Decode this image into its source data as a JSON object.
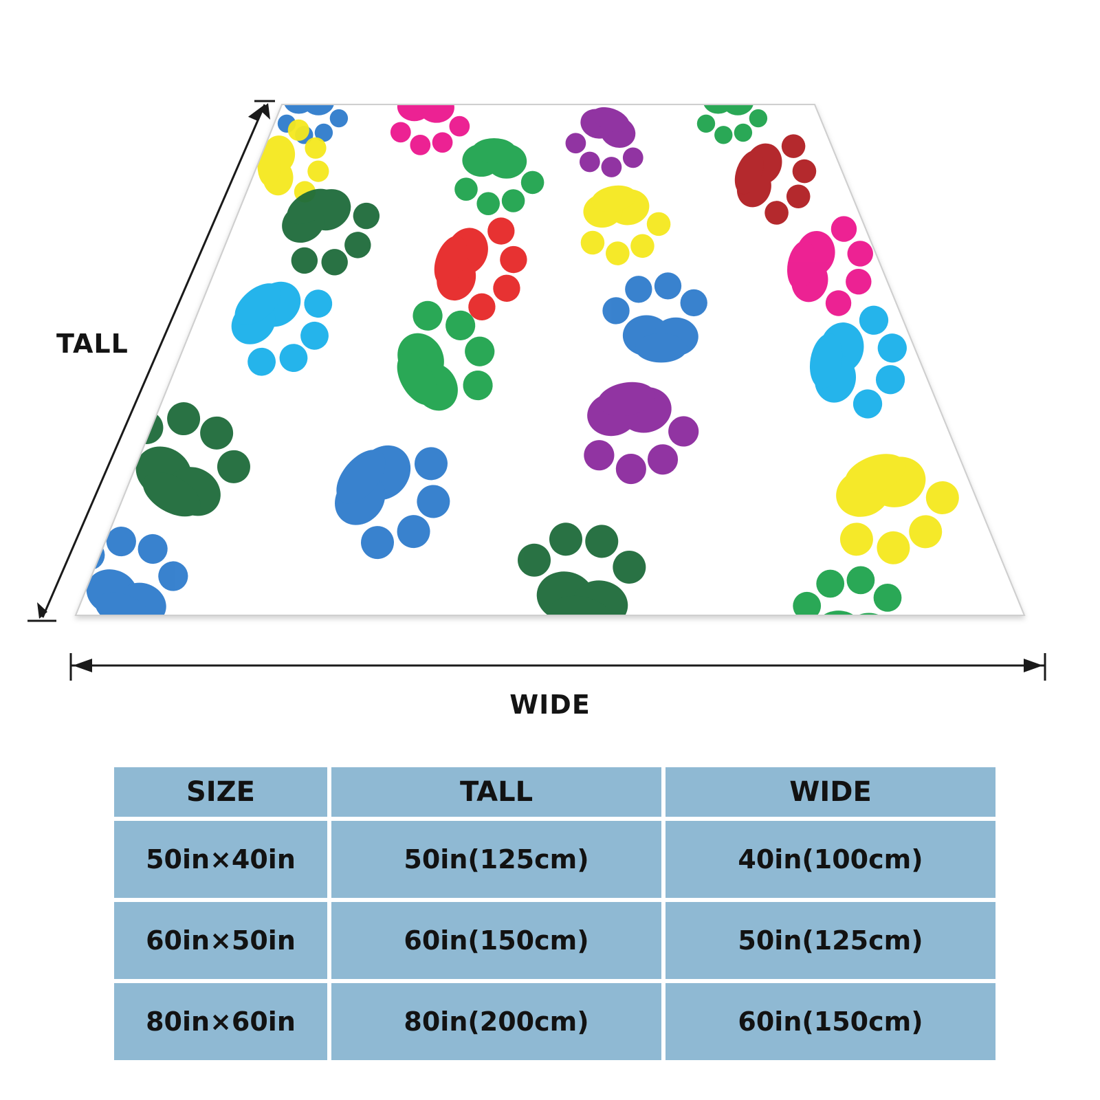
{
  "dimension_labels": {
    "tall": "TALL",
    "wide": "WIDE"
  },
  "size_table": {
    "headers": [
      "SIZE",
      "TALL",
      "WIDE"
    ],
    "rows": [
      [
        "50in×40in",
        "50in(125cm)",
        "40in(100cm)"
      ],
      [
        "60in×50in",
        "60in(150cm)",
        "50in(125cm)"
      ],
      [
        "80in×60in",
        "80in(200cm)",
        "60in(150cm)"
      ]
    ]
  },
  "colors": {
    "table_cell": "#8fb9d3",
    "blanket": "#ffffff",
    "paw_blue": "#2f7ccc",
    "paw_sky": "#1ab0ea",
    "paw_pink": "#ec178e",
    "paw_purple": "#8c2a9e",
    "paw_yellow": "#f5e81e",
    "paw_green": "#1fa44e",
    "paw_darkgreen": "#1e6b3a",
    "paw_red": "#e62828",
    "paw_darkred": "#b01e22"
  }
}
